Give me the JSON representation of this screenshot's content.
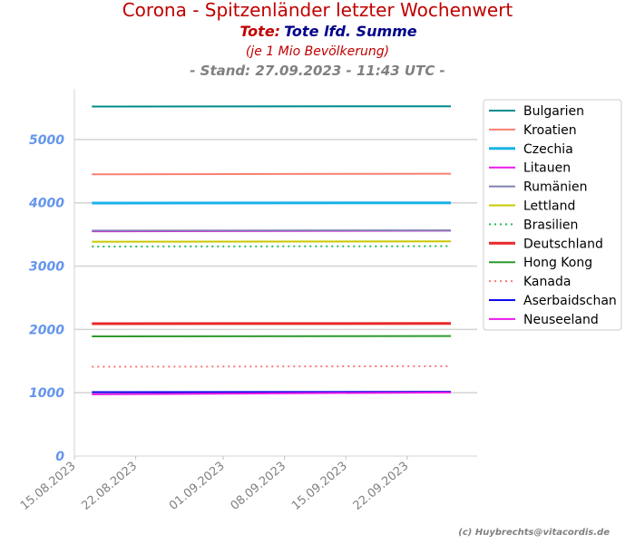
{
  "chart_data": {
    "type": "line",
    "title": "Corona - Spitzenländer letzter Wochenwert",
    "subtitle_prefix": "Tote:",
    "subtitle_main": "Tote lfd. Summe",
    "note": "(je 1 Mio Bevölkerung)",
    "stand": "- Stand: 27.09.2023 - 11:43 UTC -",
    "credit": "(c) Huybrechts@vitacordis.de",
    "colors": {
      "title": "#c00000",
      "subtitle_main": "#00008b",
      "ytick": "#6495ed",
      "grid": "#d3d3d3"
    },
    "xlabel": "",
    "ylabel": "",
    "x_start": "2023-08-15",
    "x_end": "2023-09-30",
    "x_ticks": [
      {
        "label": "15.08.2023",
        "date": "2023-08-15"
      },
      {
        "label": "22.08.2023",
        "date": "2023-08-22"
      },
      {
        "label": "01.09.2023",
        "date": "2023-09-01"
      },
      {
        "label": "08.09.2023",
        "date": "2023-09-08"
      },
      {
        "label": "15.09.2023",
        "date": "2023-09-15"
      },
      {
        "label": "22.09.2023",
        "date": "2023-09-22"
      }
    ],
    "ylim": [
      0,
      5800
    ],
    "y_ticks": [
      0,
      1000,
      2000,
      3000,
      4000,
      5000
    ],
    "grid": true,
    "legend_position": "top-right outside",
    "series": [
      {
        "name": "Bulgarien",
        "color": "#008b8b",
        "style": "solid",
        "start": "2023-08-17",
        "end": "2023-09-27",
        "y_start": 5520,
        "y_end": 5525
      },
      {
        "name": "Kroatien",
        "color": "#fa8072",
        "style": "solid",
        "start": "2023-08-17",
        "end": "2023-09-27",
        "y_start": 4450,
        "y_end": 4460
      },
      {
        "name": "Czechia",
        "color": "#1ab2e8",
        "style": "thick",
        "start": "2023-08-17",
        "end": "2023-09-27",
        "y_start": 3995,
        "y_end": 4000
      },
      {
        "name": "Litauen",
        "color": "#e81ae8",
        "style": "solid",
        "start": "2023-08-17",
        "end": "2023-09-27",
        "y_start": 3550,
        "y_end": 3560
      },
      {
        "name": "Rumänien",
        "color": "#8080b0",
        "style": "solid",
        "start": "2023-08-17",
        "end": "2023-09-27",
        "y_start": 3560,
        "y_end": 3565
      },
      {
        "name": "Lettland",
        "color": "#c8c800",
        "style": "solid",
        "start": "2023-08-17",
        "end": "2023-09-27",
        "y_start": 3385,
        "y_end": 3390
      },
      {
        "name": "Brasilien",
        "color": "#22b85a",
        "style": "dotted",
        "start": "2023-08-17",
        "end": "2023-09-27",
        "y_start": 3310,
        "y_end": 3315
      },
      {
        "name": "Deutschland",
        "color": "#e8282a",
        "style": "thick",
        "start": "2023-08-17",
        "end": "2023-09-27",
        "y_start": 2090,
        "y_end": 2095
      },
      {
        "name": "Hong Kong",
        "color": "#2e9a2e",
        "style": "solid",
        "start": "2023-08-17",
        "end": "2023-09-27",
        "y_start": 1890,
        "y_end": 1895
      },
      {
        "name": "Kanada",
        "color": "#f87878",
        "style": "dotted",
        "start": "2023-08-17",
        "end": "2023-09-27",
        "y_start": 1410,
        "y_end": 1420
      },
      {
        "name": "Aserbaidschan",
        "color": "#0a0aeb",
        "style": "solid",
        "start": "2023-08-17",
        "end": "2023-09-27",
        "y_start": 1010,
        "y_end": 1015
      },
      {
        "name": "Neuseeland",
        "color": "#e81ae8",
        "style": "solid",
        "start": "2023-08-17",
        "end": "2023-09-27",
        "y_start": 975,
        "y_end": 1005
      }
    ]
  }
}
